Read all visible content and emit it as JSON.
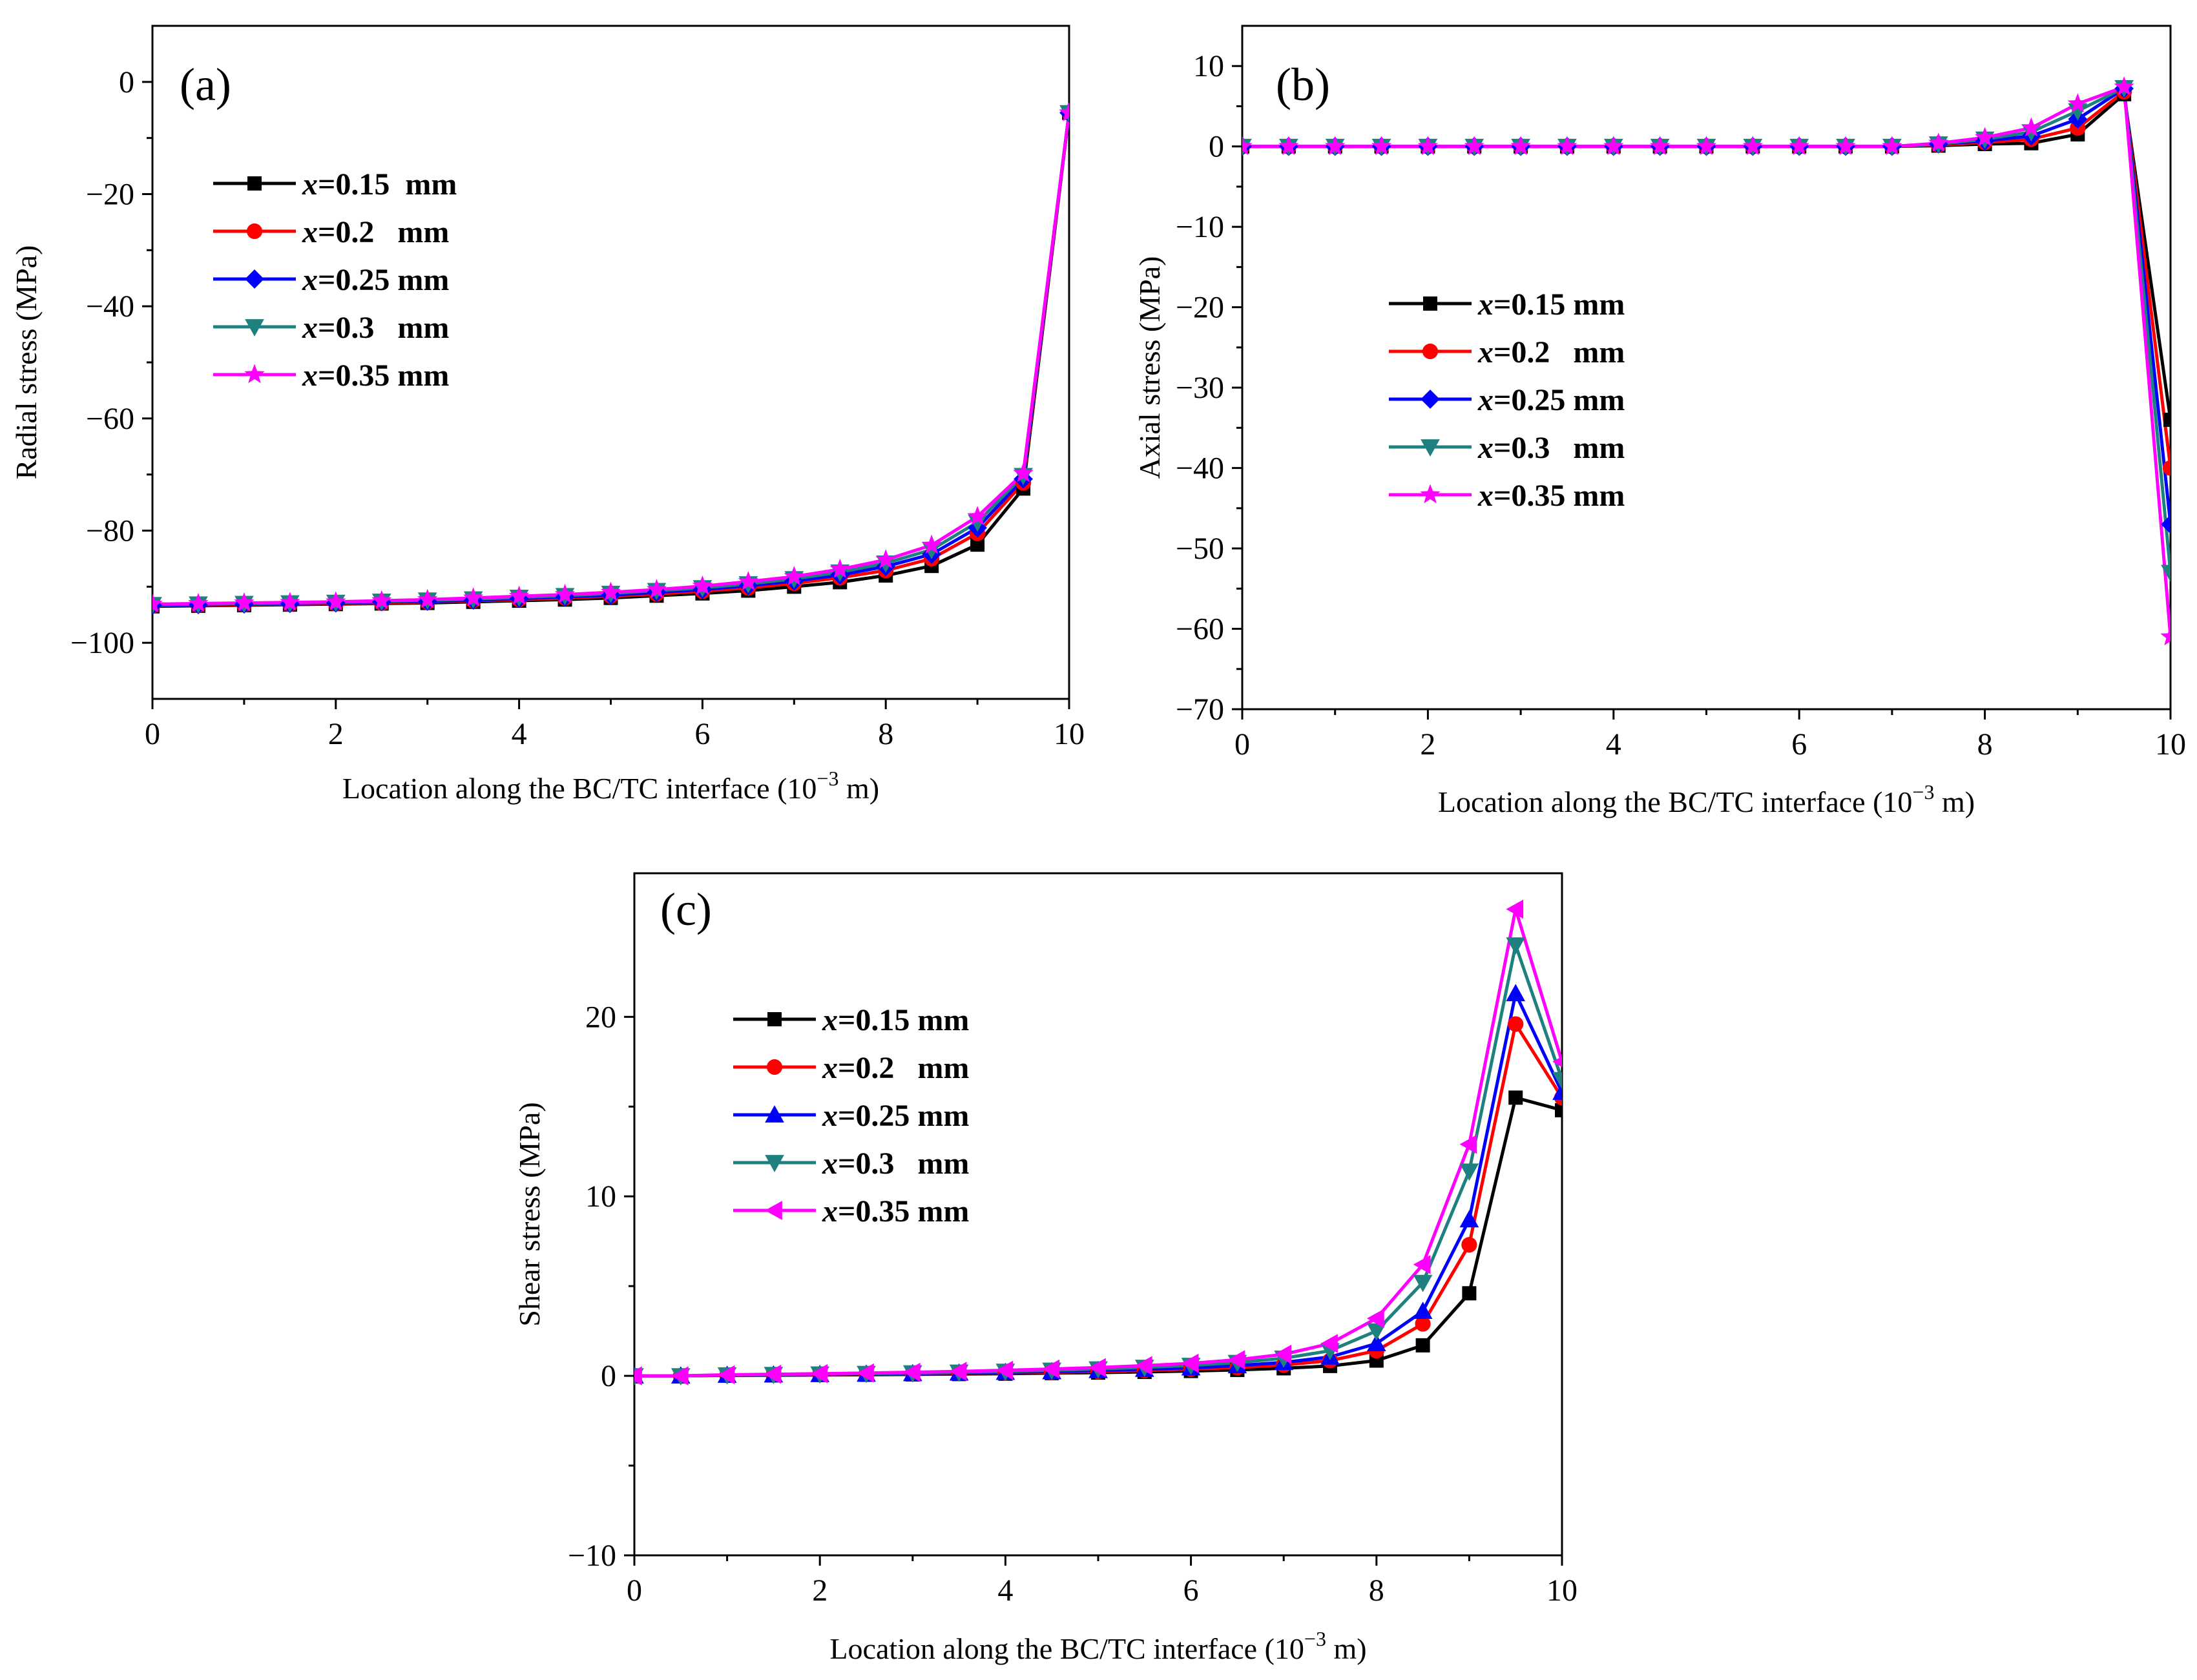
{
  "chart_data": [
    {
      "type": "line",
      "panel": "(a)",
      "title": "",
      "xlabel": "Location along the BC/TC interface (10",
      "xlabel_exp": "−3",
      "xlabel_unit": " m)",
      "ylabel": "Radial stress (MPa)",
      "xlim": [
        0,
        10
      ],
      "ylim": [
        -110,
        10
      ],
      "xticks": [
        0,
        2,
        4,
        6,
        8,
        10
      ],
      "yticks": [
        0,
        -20,
        -40,
        -60,
        -80,
        -100
      ],
      "xtick_labels": [
        "0",
        "2",
        "4",
        "6",
        "8",
        "10"
      ],
      "ytick_labels": [
        "0",
        "−20",
        "−40",
        "−60",
        "−80",
        "−100"
      ],
      "legend_position": "upper-left",
      "x": [
        0,
        0.5,
        1,
        1.5,
        2,
        2.5,
        3,
        3.5,
        4,
        4.5,
        5,
        5.5,
        6,
        6.5,
        7,
        7.5,
        8,
        8.5,
        9,
        9.5,
        10
      ],
      "series": [
        {
          "name_var": "x",
          "name_rest": "=0.15  mm",
          "color": "#000000",
          "marker": "square",
          "values": [
            -93.5,
            -93.4,
            -93.3,
            -93.2,
            -93.1,
            -93.0,
            -92.9,
            -92.7,
            -92.5,
            -92.3,
            -92.0,
            -91.6,
            -91.2,
            -90.7,
            -90.0,
            -89.2,
            -88.0,
            -86.3,
            -82.5,
            -72.5,
            -5.5
          ]
        },
        {
          "name_var": "x",
          "name_rest": "=0.2   mm",
          "color": "#ff0000",
          "marker": "circle",
          "values": [
            -93.4,
            -93.3,
            -93.2,
            -93.1,
            -93.0,
            -92.9,
            -92.7,
            -92.5,
            -92.3,
            -92.0,
            -91.7,
            -91.3,
            -90.8,
            -90.2,
            -89.4,
            -88.4,
            -87.1,
            -85.0,
            -80.5,
            -71.5,
            -5.5
          ]
        },
        {
          "name_var": "x",
          "name_rest": "=0.25 mm",
          "color": "#0000ff",
          "marker": "diamond",
          "values": [
            -93.3,
            -93.2,
            -93.1,
            -93.0,
            -92.9,
            -92.7,
            -92.6,
            -92.4,
            -92.1,
            -91.8,
            -91.5,
            -91.0,
            -90.5,
            -89.8,
            -89.0,
            -87.9,
            -86.4,
            -84.2,
            -79.5,
            -70.8,
            -5.5
          ]
        },
        {
          "name_var": "x",
          "name_rest": "=0.3   mm",
          "color": "#1f8080",
          "marker": "triangle-down",
          "values": [
            -93.2,
            -93.1,
            -93.0,
            -92.9,
            -92.8,
            -92.6,
            -92.4,
            -92.2,
            -91.9,
            -91.6,
            -91.2,
            -90.7,
            -90.2,
            -89.5,
            -88.6,
            -87.4,
            -85.8,
            -83.4,
            -78.5,
            -70.2,
            -5.5
          ]
        },
        {
          "name_var": "x",
          "name_rest": "=0.35 mm",
          "color": "#ff00ff",
          "marker": "star",
          "values": [
            -93.1,
            -93.0,
            -92.9,
            -92.8,
            -92.7,
            -92.5,
            -92.3,
            -92.0,
            -91.7,
            -91.4,
            -91.0,
            -90.5,
            -89.9,
            -89.1,
            -88.2,
            -86.9,
            -85.2,
            -82.6,
            -77.5,
            -69.8,
            -5.5
          ]
        }
      ]
    },
    {
      "type": "line",
      "panel": "(b)",
      "title": "",
      "xlabel": "Location along the BC/TC interface (10",
      "xlabel_exp": "−3",
      "xlabel_unit": " m)",
      "ylabel": "Axial stress (MPa)",
      "xlim": [
        0,
        10
      ],
      "ylim": [
        -70,
        15
      ],
      "xticks": [
        0,
        2,
        4,
        6,
        8,
        10
      ],
      "yticks": [
        10,
        0,
        -10,
        -20,
        -30,
        -40,
        -50,
        -60,
        -70
      ],
      "xtick_labels": [
        "0",
        "2",
        "4",
        "6",
        "8",
        "10"
      ],
      "ytick_labels": [
        "10",
        "0",
        "−10",
        "−20",
        "−30",
        "−40",
        "−50",
        "−60",
        "−70"
      ],
      "legend_position": "middle-left",
      "x": [
        0,
        0.5,
        1,
        1.5,
        2,
        2.5,
        3,
        3.5,
        4,
        4.5,
        5,
        5.5,
        6,
        6.5,
        7,
        7.5,
        8,
        8.5,
        9,
        9.5,
        10
      ],
      "series": [
        {
          "name_var": "x",
          "name_rest": "=0.15 mm",
          "color": "#000000",
          "marker": "square",
          "values": [
            0,
            0,
            0,
            0,
            0,
            0,
            0,
            0,
            0,
            0,
            0,
            0,
            0,
            0,
            0,
            0.1,
            0.3,
            0.4,
            1.5,
            6.5,
            -34
          ]
        },
        {
          "name_var": "x",
          "name_rest": "=0.2   mm",
          "color": "#ff0000",
          "marker": "circle",
          "values": [
            0,
            0,
            0,
            0,
            0,
            0,
            0,
            0,
            0,
            0,
            0,
            0,
            0,
            0,
            0,
            0.2,
            0.5,
            0.9,
            2.3,
            6.8,
            -40
          ]
        },
        {
          "name_var": "x",
          "name_rest": "=0.25 mm",
          "color": "#0000ff",
          "marker": "diamond",
          "values": [
            0,
            0,
            0,
            0,
            0,
            0,
            0,
            0,
            0,
            0,
            0,
            0,
            0,
            0,
            0,
            0.3,
            0.7,
            1.3,
            3.4,
            7.2,
            -47
          ]
        },
        {
          "name_var": "x",
          "name_rest": "=0.3   mm",
          "color": "#1f8080",
          "marker": "triangle-down",
          "values": [
            0,
            0,
            0,
            0,
            0,
            0,
            0,
            0,
            0,
            0,
            0,
            0,
            0,
            0,
            0,
            0.3,
            0.9,
            1.8,
            4.4,
            7.3,
            -53
          ]
        },
        {
          "name_var": "x",
          "name_rest": "=0.35 mm",
          "color": "#ff00ff",
          "marker": "star",
          "values": [
            0,
            0,
            0,
            0,
            0,
            0,
            0,
            0,
            0,
            0,
            0,
            0,
            0,
            0,
            0,
            0.4,
            1.1,
            2.3,
            5.3,
            7.4,
            -61
          ]
        }
      ]
    },
    {
      "type": "line",
      "panel": "(c)",
      "title": "",
      "xlabel": "Location along the BC/TC interface (10",
      "xlabel_exp": "−3",
      "xlabel_unit": " m)",
      "ylabel": "Shear stress (MPa)",
      "xlim": [
        0,
        10
      ],
      "ylim": [
        -10,
        28
      ],
      "xticks": [
        0,
        2,
        4,
        6,
        8,
        10
      ],
      "yticks": [
        20,
        10,
        0,
        -10
      ],
      "xtick_labels": [
        "0",
        "2",
        "4",
        "6",
        "8",
        "10"
      ],
      "ytick_labels": [
        "20",
        "10",
        "0",
        "−10"
      ],
      "legend_position": "upper-left",
      "x": [
        0,
        0.5,
        1,
        1.5,
        2,
        2.5,
        3,
        3.5,
        4,
        4.5,
        5,
        5.5,
        6,
        6.5,
        7,
        7.5,
        8,
        8.5,
        9,
        9.5,
        10
      ],
      "series": [
        {
          "name_var": "x",
          "name_rest": "=0.15 mm",
          "color": "#000000",
          "marker": "square",
          "values": [
            0,
            0,
            0.02,
            0.03,
            0.05,
            0.06,
            0.08,
            0.1,
            0.12,
            0.15,
            0.18,
            0.22,
            0.27,
            0.33,
            0.42,
            0.55,
            0.85,
            1.7,
            4.6,
            15.5,
            14.8
          ]
        },
        {
          "name_var": "x",
          "name_rest": "=0.2   mm",
          "color": "#ff0000",
          "marker": "circle",
          "values": [
            0,
            0,
            0.03,
            0.05,
            0.07,
            0.09,
            0.11,
            0.14,
            0.17,
            0.2,
            0.25,
            0.3,
            0.37,
            0.46,
            0.6,
            0.85,
            1.4,
            2.9,
            7.3,
            19.6,
            15.5
          ]
        },
        {
          "name_var": "x",
          "name_rest": "=0.25 mm",
          "color": "#0000ff",
          "marker": "triangle-up",
          "values": [
            0,
            0,
            0.04,
            0.06,
            0.08,
            0.1,
            0.13,
            0.16,
            0.2,
            0.24,
            0.3,
            0.37,
            0.45,
            0.57,
            0.75,
            1.05,
            1.8,
            3.6,
            8.7,
            21.3,
            15.8
          ]
        },
        {
          "name_var": "x",
          "name_rest": "=0.3   mm",
          "color": "#1f8080",
          "marker": "triangle-down",
          "values": [
            0,
            0,
            0.05,
            0.07,
            0.1,
            0.13,
            0.16,
            0.2,
            0.25,
            0.31,
            0.38,
            0.47,
            0.58,
            0.74,
            0.98,
            1.4,
            2.5,
            5.2,
            11.4,
            24.0,
            16.5
          ]
        },
        {
          "name_var": "x",
          "name_rest": "=0.35 mm",
          "color": "#ff00ff",
          "marker": "triangle-left",
          "values": [
            0,
            0,
            0.06,
            0.09,
            0.12,
            0.16,
            0.2,
            0.25,
            0.31,
            0.38,
            0.46,
            0.57,
            0.7,
            0.9,
            1.2,
            1.8,
            3.2,
            6.2,
            12.9,
            26.0,
            17.5
          ]
        }
      ]
    }
  ]
}
